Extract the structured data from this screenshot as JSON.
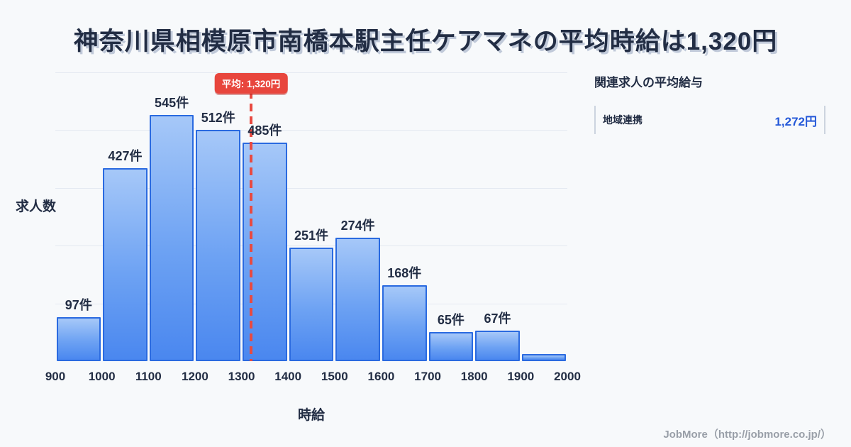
{
  "page": {
    "title": "神奈川県相模原市南橋本駅主任ケアマネの平均時給は1,320円",
    "footer": "JobMore（http://jobmore.co.jp/）"
  },
  "chart_data": {
    "type": "bar",
    "title": "神奈川県相模原市南橋本駅主任ケアマネの平均時給は1,320円",
    "xlabel": "時給",
    "ylabel": "求人数",
    "x_ticks": [
      900,
      1000,
      1100,
      1200,
      1300,
      1400,
      1500,
      1600,
      1700,
      1800,
      1900,
      2000
    ],
    "ylim": [
      0,
      640
    ],
    "grid_divisions": 5,
    "legend": "none",
    "bins": [
      {
        "range": [
          900,
          1000
        ],
        "value": 97,
        "label": "97件"
      },
      {
        "range": [
          1000,
          1100
        ],
        "value": 427,
        "label": "427件"
      },
      {
        "range": [
          1100,
          1200
        ],
        "value": 545,
        "label": "545件"
      },
      {
        "range": [
          1200,
          1300
        ],
        "value": 512,
        "label": "512件"
      },
      {
        "range": [
          1300,
          1400
        ],
        "value": 485,
        "label": "485件"
      },
      {
        "range": [
          1400,
          1500
        ],
        "value": 251,
        "label": "251件"
      },
      {
        "range": [
          1500,
          1600
        ],
        "value": 274,
        "label": "274件"
      },
      {
        "range": [
          1600,
          1700
        ],
        "value": 168,
        "label": "168件"
      },
      {
        "range": [
          1700,
          1800
        ],
        "value": 65,
        "label": "65件"
      },
      {
        "range": [
          1800,
          1900
        ],
        "value": 67,
        "label": "67件"
      },
      {
        "range": [
          1900,
          2000
        ],
        "value": 15,
        "label": ""
      }
    ],
    "average_line": {
      "value": 1320,
      "label": "平均: 1,320円"
    }
  },
  "side_panel": {
    "heading": "関連求人の平均給与",
    "rows": [
      {
        "label": "地域連携",
        "value": "1,272円"
      }
    ]
  },
  "colors": {
    "background": "#f7f9fb",
    "bar_fill_top": "#a6c8f8",
    "bar_fill_bottom": "#4a87ef",
    "bar_border": "#2a6ae0",
    "average_red": "#e8463d",
    "value_blue": "#2458d8",
    "text_navy": "#222d44",
    "gridline": "#e4e9f1"
  }
}
